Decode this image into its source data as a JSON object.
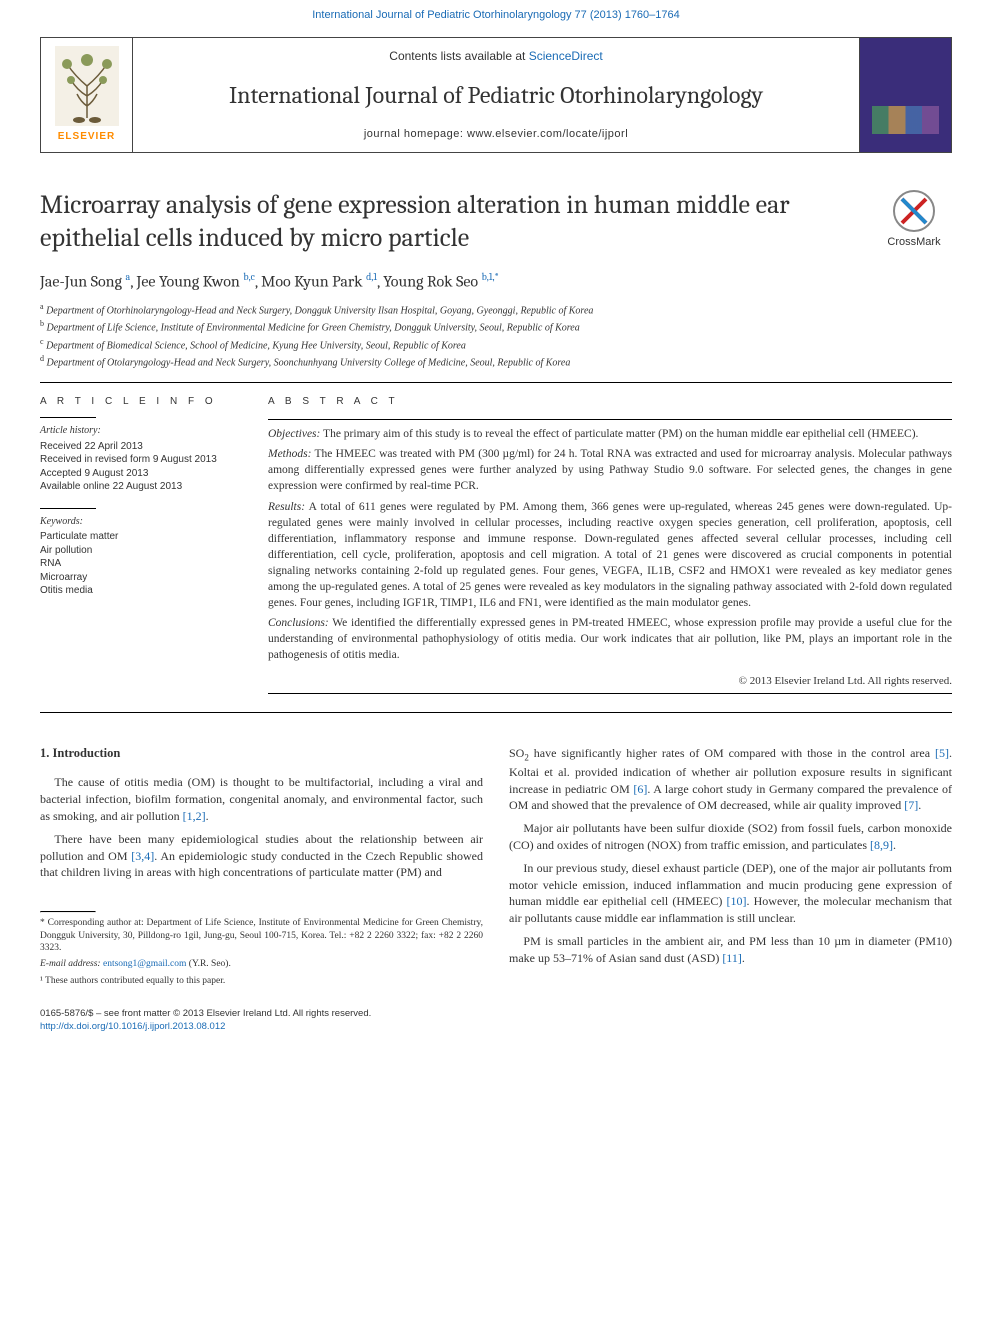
{
  "header": {
    "top_link_prefix": "International Journal of Pediatric Otorhinolaryngology 77 (2013) 1760–1764",
    "contents_prefix": "Contents lists available at ",
    "contents_link": "ScienceDirect",
    "journal_name": "International Journal of Pediatric Otorhinolaryngology",
    "homepage_prefix": "journal homepage: ",
    "homepage_url": "www.elsevier.com/locate/ijporl",
    "publisher": "ELSEVIER",
    "crossmark": "CrossMark"
  },
  "article": {
    "title": "Microarray analysis of gene expression alteration in human middle ear epithelial cells induced by micro particle",
    "authors_html": "Jae-Jun Song <sup>a</sup>, Jee Young Kwon <sup>b,c</sup>, Moo Kyun Park <sup>d,1</sup>, Young Rok Seo <sup>b,1,*</sup>",
    "affiliations": [
      "Department of Otorhinolaryngology-Head and Neck Surgery, Dongguk University Ilsan Hospital, Goyang, Gyeonggi, Republic of Korea",
      "Department of Life Science, Institute of Environmental Medicine for Green Chemistry, Dongguk University, Seoul, Republic of Korea",
      "Department of Biomedical Science, School of Medicine, Kyung Hee University, Seoul, Republic of Korea",
      "Department of Otolaryngology-Head and Neck Surgery, Soonchunhyang University College of Medicine, Seoul, Republic of Korea"
    ],
    "aff_markers": [
      "a",
      "b",
      "c",
      "d"
    ]
  },
  "info": {
    "heading": "A R T I C L E   I N F O",
    "history_label": "Article history:",
    "history": [
      "Received 22 April 2013",
      "Received in revised form 9 August 2013",
      "Accepted 9 August 2013",
      "Available online 22 August 2013"
    ],
    "keywords_label": "Keywords:",
    "keywords": [
      "Particulate matter",
      "Air pollution",
      "RNA",
      "Microarray",
      "Otitis media"
    ]
  },
  "abstract": {
    "heading": "A B S T R A C T",
    "objectives_label": "Objectives:",
    "objectives": "The primary aim of this study is to reveal the effect of particulate matter (PM) on the human middle ear epithelial cell (HMEEC).",
    "methods_label": "Methods:",
    "methods": "The HMEEC was treated with PM (300 µg/ml) for 24 h. Total RNA was extracted and used for microarray analysis. Molecular pathways among differentially expressed genes were further analyzed by using Pathway Studio 9.0 software. For selected genes, the changes in gene expression were confirmed by real-time PCR.",
    "results_label": "Results:",
    "results": "A total of 611 genes were regulated by PM. Among them, 366 genes were up-regulated, whereas 245 genes were down-regulated. Up-regulated genes were mainly involved in cellular processes, including reactive oxygen species generation, cell proliferation, apoptosis, cell differentiation, inflammatory response and immune response. Down-regulated genes affected several cellular processes, including cell differentiation, cell cycle, proliferation, apoptosis and cell migration. A total of 21 genes were discovered as crucial components in potential signaling networks containing 2-fold up regulated genes. Four genes, VEGFA, IL1B, CSF2 and HMOX1 were revealed as key mediator genes among the up-regulated genes. A total of 25 genes were revealed as key modulators in the signaling pathway associated with 2-fold down regulated genes. Four genes, including IGF1R, TIMP1, IL6 and FN1, were identified as the main modulator genes.",
    "conclusions_label": "Conclusions:",
    "conclusions": "We identified the differentially expressed genes in PM-treated HMEEC, whose expression profile may provide a useful clue for the understanding of environmental pathophysiology of otitis media. Our work indicates that air pollution, like PM, plays an important role in the pathogenesis of otitis media.",
    "copyright": "© 2013 Elsevier Ireland Ltd. All rights reserved."
  },
  "body": {
    "section1_heading": "1. Introduction",
    "col1_p1": "The cause of otitis media (OM) is thought to be multifactorial, including a viral and bacterial infection, biofilm formation, congenital anomaly, and environmental factor, such as smoking, and air pollution ",
    "col1_p1_ref": "[1,2]",
    "col1_p2a": "There have been many epidemiological studies about the relationship between air pollution and OM ",
    "col1_p2_ref": "[3,4]",
    "col1_p2b": ". An epidemiologic study conducted in the Czech Republic showed that children living in areas with high concentrations of particulate matter (PM) and",
    "col2_p1a": "SO",
    "col2_p1_sub": "2",
    "col2_p1b": " have significantly higher rates of OM compared with those in the control area ",
    "col2_p1_ref1": "[5]",
    "col2_p1c": ". Koltai et al. provided indication of whether air pollution exposure results in significant increase in pediatric OM ",
    "col2_p1_ref2": "[6]",
    "col2_p1d": ". A large cohort study in Germany compared the prevalence of OM and showed that the prevalence of OM decreased, while air quality improved ",
    "col2_p1_ref3": "[7]",
    "col2_p2": "Major air pollutants have been sulfur dioxide (SO2) from fossil fuels, carbon monoxide (CO) and oxides of nitrogen (NOX) from traffic emission, and particulates ",
    "col2_p2_ref": "[8,9]",
    "col2_p3a": "In our previous study, diesel exhaust particle (DEP), one of the major air pollutants from motor vehicle emission, induced inflammation and mucin producing gene expression of human middle ear epithelial cell (HMEEC) ",
    "col2_p3_ref": "[10]",
    "col2_p3b": ". However, the molecular mechanism that air pollutants cause middle ear inflammation is still unclear.",
    "col2_p4a": "PM is small particles in the ambient air, and PM less than 10 µm in diameter (PM10) make up 53–71% of Asian sand dust (ASD) ",
    "col2_p4_ref": "[11]"
  },
  "footnotes": {
    "corr": "* Corresponding author at: Department of Life Science, Institute of Environmental Medicine for Green Chemistry, Dongguk University, 30, Pilldong-ro 1gil, Jung-gu, Seoul 100-715, Korea. Tel.: +82 2 2260 3322; fax: +82 2 2260 3323.",
    "email_label": "E-mail address: ",
    "email": "entsong1@gmail.com",
    "email_who": " (Y.R. Seo).",
    "note1": "¹ These authors contributed equally to this paper."
  },
  "bottom": {
    "issn": "0165-5876/$ – see front matter © 2013 Elsevier Ireland Ltd. All rights reserved.",
    "doi": "http://dx.doi.org/10.1016/j.ijporl.2013.08.012"
  },
  "colors": {
    "link": "#1a6bb5",
    "elsevier_orange": "#ff8c00",
    "cover_bg": "#3a2d7a"
  }
}
